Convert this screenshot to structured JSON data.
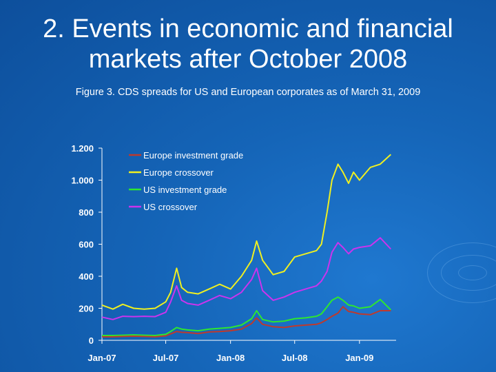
{
  "slide": {
    "title_line1": "2. Events in economic and financial",
    "title_line2": "markets after October 2008",
    "subtitle": "Figure 3. CDS spreads for US and European corporates as of March 31, 2009"
  },
  "chart_data": {
    "type": "line",
    "title": "Figure 3. CDS spreads for US and European corporates as of March 31, 2009",
    "xlabel": "",
    "ylabel": "",
    "ylim": [
      0,
      1200
    ],
    "yticks": [
      0,
      200,
      400,
      600,
      800,
      1000,
      1200
    ],
    "ytick_labels": [
      "0",
      "200",
      "400",
      "600",
      "800",
      "1.000",
      "1.200"
    ],
    "xlim": [
      "2007-01-01",
      "2009-04-15"
    ],
    "xticks": [
      "2007-01-01",
      "2007-07-01",
      "2008-01-01",
      "2008-07-01",
      "2009-01-01"
    ],
    "xtick_labels": [
      "Jan-07",
      "Jul-07",
      "Jan-08",
      "Jul-08",
      "Jan-09"
    ],
    "grid": false,
    "legend_position": "top-left",
    "x": [
      "2007-01-01",
      "2007-02-01",
      "2007-03-01",
      "2007-04-01",
      "2007-05-01",
      "2007-06-01",
      "2007-07-01",
      "2007-07-15",
      "2007-08-01",
      "2007-08-15",
      "2007-09-01",
      "2007-10-01",
      "2007-11-01",
      "2007-12-01",
      "2008-01-01",
      "2008-02-01",
      "2008-03-01",
      "2008-03-15",
      "2008-04-01",
      "2008-05-01",
      "2008-06-01",
      "2008-07-01",
      "2008-08-01",
      "2008-09-01",
      "2008-09-15",
      "2008-10-01",
      "2008-10-15",
      "2008-11-01",
      "2008-11-15",
      "2008-12-01",
      "2008-12-15",
      "2009-01-01",
      "2009-02-01",
      "2009-03-01",
      "2009-03-31"
    ],
    "series": [
      {
        "name": "Europe investment grade",
        "color": "#c0392b",
        "values": [
          22,
          22,
          24,
          26,
          24,
          22,
          28,
          40,
          55,
          50,
          48,
          42,
          52,
          55,
          60,
          70,
          105,
          140,
          100,
          85,
          80,
          90,
          95,
          100,
          110,
          130,
          150,
          170,
          210,
          180,
          175,
          165,
          160,
          185,
          185
        ]
      },
      {
        "name": "Europe crossover",
        "color": "#f0f020",
        "values": [
          220,
          195,
          225,
          200,
          195,
          200,
          240,
          300,
          450,
          330,
          300,
          290,
          320,
          350,
          320,
          400,
          500,
          620,
          500,
          410,
          430,
          520,
          540,
          560,
          600,
          800,
          1000,
          1100,
          1050,
          980,
          1050,
          1000,
          1080,
          1100,
          1160
        ]
      },
      {
        "name": "US investment grade",
        "color": "#2ee82e",
        "values": [
          30,
          30,
          32,
          34,
          32,
          30,
          38,
          55,
          80,
          70,
          65,
          60,
          70,
          75,
          80,
          95,
          135,
          185,
          130,
          115,
          120,
          135,
          140,
          150,
          165,
          210,
          250,
          270,
          250,
          220,
          215,
          200,
          210,
          255,
          190
        ]
      },
      {
        "name": "US crossover",
        "color": "#cc33ee",
        "values": [
          145,
          130,
          150,
          148,
          150,
          148,
          175,
          240,
          340,
          250,
          230,
          220,
          250,
          280,
          260,
          300,
          380,
          450,
          310,
          250,
          270,
          300,
          320,
          340,
          370,
          430,
          550,
          610,
          580,
          540,
          570,
          580,
          590,
          640,
          570
        ]
      }
    ]
  }
}
